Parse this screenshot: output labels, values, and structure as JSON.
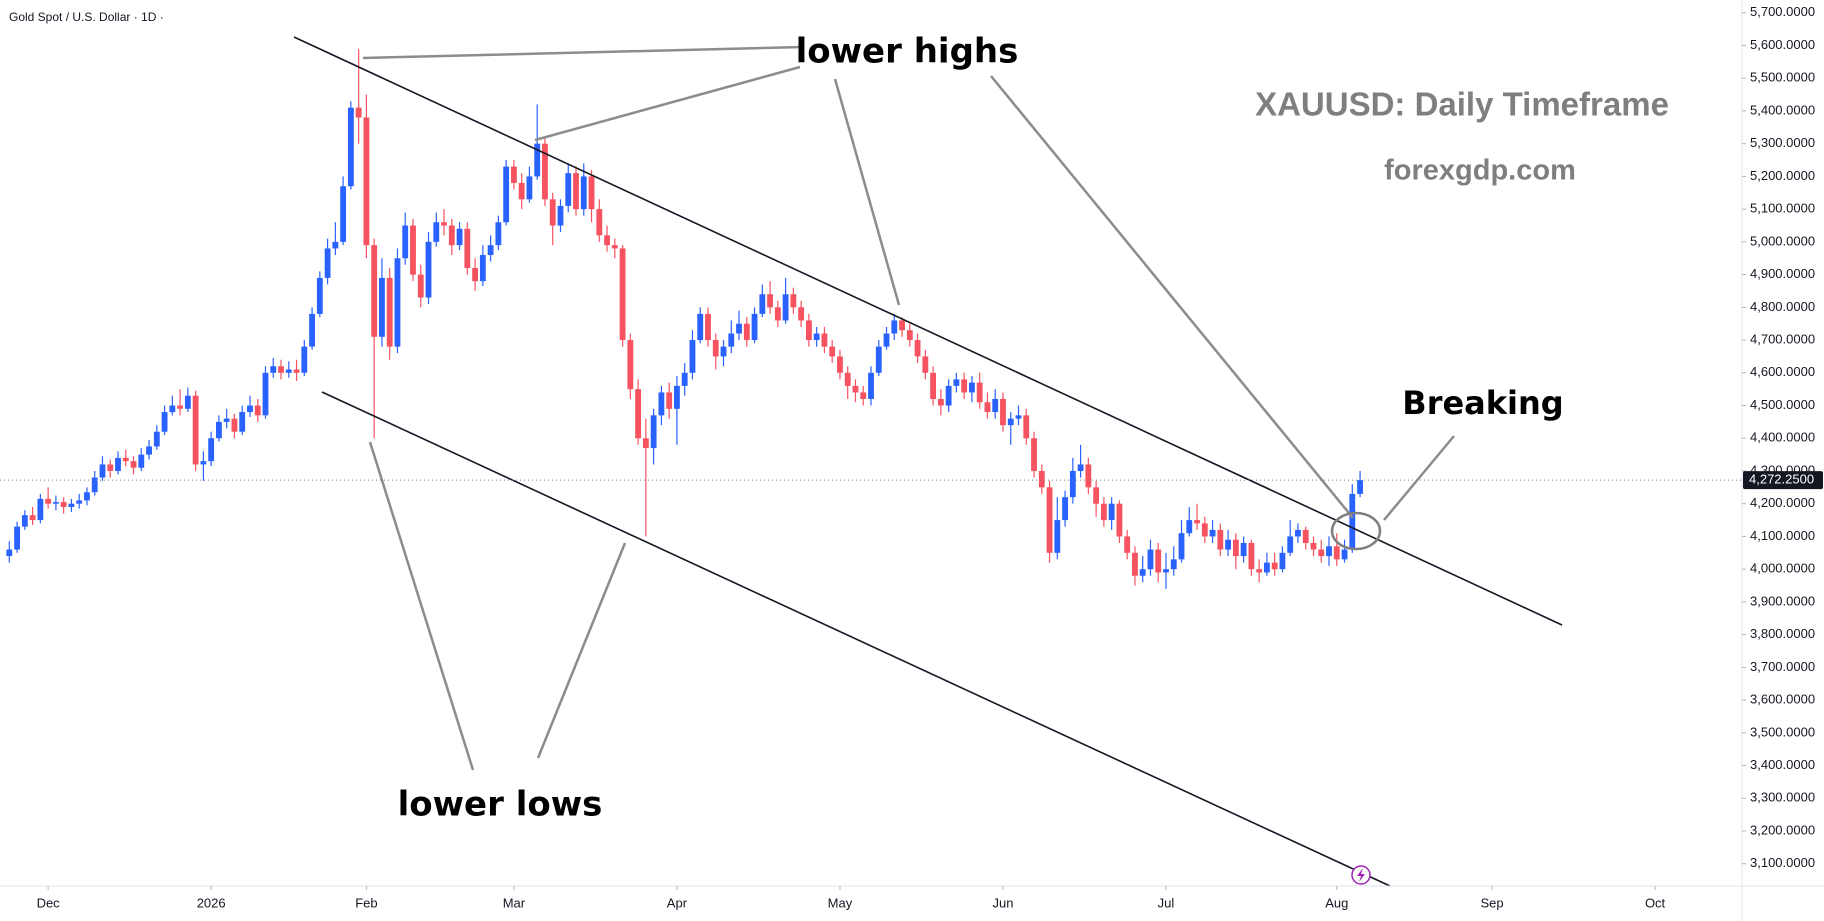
{
  "chart_data": {
    "type": "candlestick",
    "header": "Gold Spot / U.S. Dollar · 1D ·",
    "title": "XAUUSD: Daily Timeframe",
    "subtitle": "forexgdp.com",
    "annotations": [
      "lower highs",
      "lower lows",
      "Breaking"
    ],
    "up_color": "#2962ff",
    "down_color": "#f7525f",
    "grid": false,
    "xlim": [
      -1.2,
      223.2
    ],
    "xticks": [
      {
        "value": 5,
        "label": "Dec"
      },
      {
        "value": 26,
        "label": "2026"
      },
      {
        "value": 46,
        "label": "Feb"
      },
      {
        "value": 65,
        "label": "Mar"
      },
      {
        "value": 86,
        "label": "Apr"
      },
      {
        "value": 107,
        "label": "May"
      },
      {
        "value": 128,
        "label": "Jun"
      },
      {
        "value": 149,
        "label": "Jul"
      },
      {
        "value": 171,
        "label": "Aug"
      },
      {
        "value": 191,
        "label": "Sep"
      },
      {
        "value": 212,
        "label": "Oct"
      }
    ],
    "ylim": [
      3032,
      5739
    ],
    "yticks": [
      {
        "value": 3100,
        "label": "3,100.0000"
      },
      {
        "value": 3200,
        "label": "3,200.0000"
      },
      {
        "value": 3300,
        "label": "3,300.0000"
      },
      {
        "value": 3400,
        "label": "3,400.0000"
      },
      {
        "value": 3500,
        "label": "3,500.0000"
      },
      {
        "value": 3600,
        "label": "3,600.0000"
      },
      {
        "value": 3700,
        "label": "3,700.0000"
      },
      {
        "value": 3800,
        "label": "3,800.0000"
      },
      {
        "value": 3900,
        "label": "3,900.0000"
      },
      {
        "value": 4000,
        "label": "4,000.0000"
      },
      {
        "value": 4100,
        "label": "4,100.0000"
      },
      {
        "value": 4200,
        "label": "4,200.0000"
      },
      {
        "value": 4300,
        "label": "4,300.0000"
      },
      {
        "value": 4400,
        "label": "4,400.0000"
      },
      {
        "value": 4500,
        "label": "4,500.0000"
      },
      {
        "value": 4600,
        "label": "4,600.0000"
      },
      {
        "value": 4700,
        "label": "4,700.0000"
      },
      {
        "value": 4800,
        "label": "4,800.0000"
      },
      {
        "value": 4900,
        "label": "4,900.0000"
      },
      {
        "value": 5000,
        "label": "5,000.0000"
      },
      {
        "value": 5100,
        "label": "5,100.0000"
      },
      {
        "value": 5200,
        "label": "5,200.0000"
      },
      {
        "value": 5300,
        "label": "5,300.0000"
      },
      {
        "value": 5400,
        "label": "5,400.0000"
      },
      {
        "value": 5500,
        "label": "5,500.0000"
      },
      {
        "value": 5600,
        "label": "5,600.0000"
      },
      {
        "value": 5700,
        "label": "5,700.0000"
      }
    ],
    "last_price": {
      "value": 4272.25,
      "label": "4,272.2500"
    },
    "ohlc": [
      [
        4040,
        4085,
        4020,
        4060
      ],
      [
        4060,
        4145,
        4050,
        4130
      ],
      [
        4130,
        4180,
        4120,
        4165
      ],
      [
        4165,
        4190,
        4135,
        4150
      ],
      [
        4150,
        4230,
        4140,
        4215
      ],
      [
        4215,
        4250,
        4185,
        4200
      ],
      [
        4200,
        4225,
        4180,
        4205
      ],
      [
        4205,
        4220,
        4170,
        4190
      ],
      [
        4190,
        4215,
        4175,
        4200
      ],
      [
        4200,
        4230,
        4185,
        4210
      ],
      [
        4210,
        4250,
        4195,
        4235
      ],
      [
        4235,
        4300,
        4225,
        4280
      ],
      [
        4280,
        4345,
        4270,
        4320
      ],
      [
        4320,
        4335,
        4280,
        4300
      ],
      [
        4300,
        4360,
        4290,
        4340
      ],
      [
        4340,
        4365,
        4315,
        4330
      ],
      [
        4330,
        4345,
        4290,
        4310
      ],
      [
        4310,
        4370,
        4300,
        4350
      ],
      [
        4350,
        4395,
        4335,
        4375
      ],
      [
        4375,
        4440,
        4365,
        4420
      ],
      [
        4420,
        4500,
        4410,
        4480
      ],
      [
        4480,
        4530,
        4470,
        4500
      ],
      [
        4500,
        4550,
        4470,
        4490
      ],
      [
        4490,
        4555,
        4480,
        4530
      ],
      [
        4530,
        4545,
        4300,
        4320
      ],
      [
        4320,
        4360,
        4270,
        4330
      ],
      [
        4330,
        4420,
        4315,
        4400
      ],
      [
        4400,
        4470,
        4390,
        4450
      ],
      [
        4450,
        4490,
        4430,
        4460
      ],
      [
        4460,
        4475,
        4400,
        4420
      ],
      [
        4420,
        4500,
        4410,
        4480
      ],
      [
        4480,
        4530,
        4465,
        4500
      ],
      [
        4500,
        4520,
        4450,
        4470
      ],
      [
        4470,
        4620,
        4460,
        4600
      ],
      [
        4600,
        4645,
        4585,
        4620
      ],
      [
        4620,
        4640,
        4580,
        4600
      ],
      [
        4600,
        4635,
        4585,
        4610
      ],
      [
        4610,
        4640,
        4575,
        4600
      ],
      [
        4600,
        4700,
        4590,
        4680
      ],
      [
        4680,
        4800,
        4670,
        4780
      ],
      [
        4780,
        4910,
        4770,
        4890
      ],
      [
        4890,
        5010,
        4870,
        4980
      ],
      [
        4980,
        5060,
        4960,
        5000
      ],
      [
        5000,
        5200,
        4990,
        5170
      ],
      [
        5170,
        5430,
        5160,
        5410
      ],
      [
        5410,
        5590,
        5300,
        5380
      ],
      [
        5380,
        5450,
        4950,
        4990
      ],
      [
        4990,
        5010,
        4400,
        4710
      ],
      [
        4710,
        4950,
        4680,
        4890
      ],
      [
        4890,
        4920,
        4640,
        4680
      ],
      [
        4680,
        4980,
        4660,
        4950
      ],
      [
        4950,
        5090,
        4930,
        5050
      ],
      [
        5050,
        5070,
        4880,
        4900
      ],
      [
        4900,
        4930,
        4800,
        4830
      ],
      [
        4830,
        5030,
        4810,
        5000
      ],
      [
        5000,
        5090,
        4985,
        5060
      ],
      [
        5060,
        5100,
        5020,
        5050
      ],
      [
        5050,
        5070,
        4960,
        4990
      ],
      [
        4990,
        5060,
        4975,
        5040
      ],
      [
        5040,
        5060,
        4900,
        4920
      ],
      [
        4920,
        4950,
        4850,
        4880
      ],
      [
        4880,
        4990,
        4865,
        4960
      ],
      [
        4960,
        5020,
        4940,
        4990
      ],
      [
        4990,
        5080,
        4975,
        5060
      ],
      [
        5060,
        5250,
        5050,
        5230
      ],
      [
        5230,
        5250,
        5160,
        5180
      ],
      [
        5180,
        5210,
        5100,
        5130
      ],
      [
        5130,
        5230,
        5120,
        5200
      ],
      [
        5200,
        5420,
        5190,
        5300
      ],
      [
        5300,
        5320,
        5110,
        5130
      ],
      [
        5130,
        5150,
        4990,
        5050
      ],
      [
        5050,
        5130,
        5030,
        5110
      ],
      [
        5110,
        5240,
        5090,
        5210
      ],
      [
        5210,
        5230,
        5080,
        5100
      ],
      [
        5100,
        5240,
        5080,
        5200
      ],
      [
        5200,
        5220,
        5060,
        5100
      ],
      [
        5100,
        5130,
        5000,
        5020
      ],
      [
        5020,
        5050,
        4970,
        4990
      ],
      [
        4990,
        5010,
        4950,
        4980
      ],
      [
        4980,
        4990,
        4680,
        4700
      ],
      [
        4700,
        4720,
        4520,
        4550
      ],
      [
        4550,
        4580,
        4380,
        4400
      ],
      [
        4400,
        4460,
        4100,
        4370
      ],
      [
        4370,
        4490,
        4320,
        4470
      ],
      [
        4470,
        4560,
        4440,
        4540
      ],
      [
        4540,
        4570,
        4460,
        4490
      ],
      [
        4490,
        4590,
        4380,
        4560
      ],
      [
        4560,
        4630,
        4530,
        4600
      ],
      [
        4600,
        4730,
        4580,
        4700
      ],
      [
        4700,
        4800,
        4690,
        4780
      ],
      [
        4780,
        4800,
        4680,
        4700
      ],
      [
        4700,
        4720,
        4610,
        4650
      ],
      [
        4650,
        4700,
        4620,
        4680
      ],
      [
        4680,
        4760,
        4660,
        4720
      ],
      [
        4720,
        4790,
        4700,
        4750
      ],
      [
        4750,
        4770,
        4680,
        4700
      ],
      [
        4700,
        4800,
        4690,
        4780
      ],
      [
        4780,
        4870,
        4770,
        4840
      ],
      [
        4840,
        4880,
        4780,
        4800
      ],
      [
        4800,
        4820,
        4740,
        4760
      ],
      [
        4760,
        4890,
        4750,
        4840
      ],
      [
        4840,
        4860,
        4780,
        4800
      ],
      [
        4800,
        4820,
        4740,
        4760
      ],
      [
        4760,
        4780,
        4680,
        4700
      ],
      [
        4700,
        4740,
        4680,
        4720
      ],
      [
        4720,
        4740,
        4660,
        4680
      ],
      [
        4680,
        4700,
        4630,
        4650
      ],
      [
        4650,
        4670,
        4580,
        4600
      ],
      [
        4600,
        4620,
        4520,
        4560
      ],
      [
        4560,
        4580,
        4510,
        4540
      ],
      [
        4540,
        4560,
        4500,
        4520
      ],
      [
        4520,
        4620,
        4500,
        4600
      ],
      [
        4600,
        4700,
        4590,
        4680
      ],
      [
        4680,
        4740,
        4670,
        4720
      ],
      [
        4720,
        4780,
        4700,
        4760
      ],
      [
        4760,
        4770,
        4710,
        4730
      ],
      [
        4730,
        4750,
        4680,
        4700
      ],
      [
        4700,
        4720,
        4630,
        4650
      ],
      [
        4650,
        4670,
        4580,
        4600
      ],
      [
        4600,
        4620,
        4500,
        4520
      ],
      [
        4520,
        4550,
        4470,
        4500
      ],
      [
        4500,
        4580,
        4480,
        4560
      ],
      [
        4560,
        4600,
        4540,
        4580
      ],
      [
        4580,
        4600,
        4520,
        4540
      ],
      [
        4540,
        4590,
        4510,
        4570
      ],
      [
        4570,
        4600,
        4490,
        4510
      ],
      [
        4510,
        4540,
        4460,
        4480
      ],
      [
        4480,
        4550,
        4460,
        4520
      ],
      [
        4520,
        4540,
        4420,
        4440
      ],
      [
        4440,
        4480,
        4380,
        4460
      ],
      [
        4460,
        4500,
        4440,
        4470
      ],
      [
        4470,
        4490,
        4380,
        4400
      ],
      [
        4400,
        4420,
        4280,
        4300
      ],
      [
        4300,
        4320,
        4230,
        4250
      ],
      [
        4250,
        4270,
        4020,
        4050
      ],
      [
        4050,
        4220,
        4030,
        4150
      ],
      [
        4150,
        4240,
        4130,
        4220
      ],
      [
        4220,
        4340,
        4200,
        4300
      ],
      [
        4300,
        4380,
        4280,
        4320
      ],
      [
        4320,
        4340,
        4230,
        4250
      ],
      [
        4250,
        4270,
        4160,
        4200
      ],
      [
        4200,
        4220,
        4130,
        4150
      ],
      [
        4150,
        4220,
        4120,
        4200
      ],
      [
        4200,
        4210,
        4080,
        4100
      ],
      [
        4100,
        4120,
        4030,
        4050
      ],
      [
        4050,
        4070,
        3950,
        3980
      ],
      [
        3980,
        4040,
        3960,
        4000
      ],
      [
        4000,
        4090,
        3980,
        4060
      ],
      [
        4060,
        4080,
        3960,
        3990
      ],
      [
        3990,
        4050,
        3940,
        4000
      ],
      [
        4000,
        4070,
        3980,
        4030
      ],
      [
        4030,
        4150,
        4020,
        4110
      ],
      [
        4110,
        4190,
        4100,
        4150
      ],
      [
        4150,
        4200,
        4120,
        4140
      ],
      [
        4140,
        4160,
        4080,
        4100
      ],
      [
        4100,
        4150,
        4080,
        4120
      ],
      [
        4120,
        4140,
        4040,
        4060
      ],
      [
        4060,
        4120,
        4040,
        4090
      ],
      [
        4090,
        4110,
        4000,
        4040
      ],
      [
        4040,
        4100,
        4020,
        4080
      ],
      [
        4080,
        4090,
        3980,
        4000
      ],
      [
        4000,
        4030,
        3960,
        3990
      ],
      [
        3990,
        4050,
        3980,
        4020
      ],
      [
        4020,
        4050,
        3980,
        4000
      ],
      [
        4000,
        4070,
        3990,
        4050
      ],
      [
        4050,
        4150,
        4040,
        4100
      ],
      [
        4100,
        4140,
        4080,
        4120
      ],
      [
        4120,
        4130,
        4060,
        4080
      ],
      [
        4080,
        4100,
        4040,
        4060
      ],
      [
        4060,
        4090,
        4020,
        4040
      ],
      [
        4040,
        4100,
        4010,
        4070
      ],
      [
        4070,
        4110,
        4010,
        4030
      ],
      [
        4030,
        4090,
        4020,
        4060
      ],
      [
        4060,
        4260,
        4050,
        4230
      ],
      [
        4230,
        4300,
        4220,
        4272.25
      ]
    ]
  }
}
